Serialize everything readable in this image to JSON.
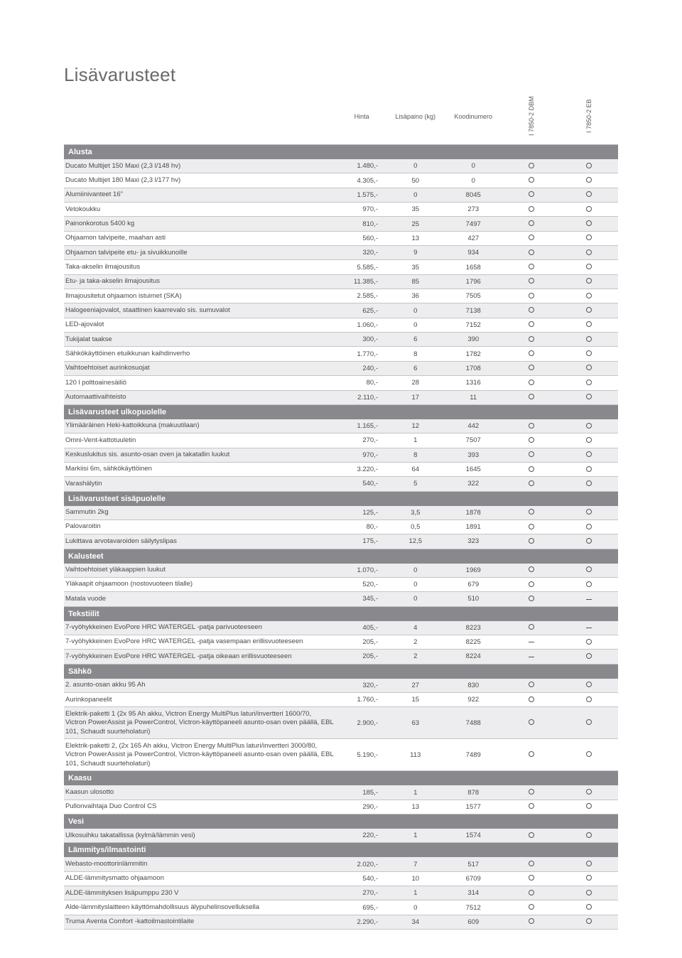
{
  "title": "Lisävarusteet",
  "headers": {
    "blank": "",
    "price": "Hinta",
    "weight": "Lisäpaino (kg)",
    "code": "Koodinumero",
    "optA": "I 7850-2 DBM",
    "optB": "I 7850-2 EB"
  },
  "sections": [
    {
      "title": "Alusta",
      "rows": [
        {
          "label": "Ducato Multijet 150 Maxi (2,3 l/148 hv)",
          "price": "1.480,-",
          "weight": "0",
          "code": "0",
          "a": "o",
          "b": "o",
          "shaded": true
        },
        {
          "label": "Ducato Multijet 180 Maxi (2,3 l/177 hv)",
          "price": "4.305,-",
          "weight": "50",
          "code": "0",
          "a": "o",
          "b": "o"
        },
        {
          "label": "Alumiinivanteet 16\"",
          "price": "1.575,-",
          "weight": "0",
          "code": "8045",
          "a": "o",
          "b": "o",
          "shaded": true
        },
        {
          "label": "Vetokoukku",
          "price": "970,-",
          "weight": "35",
          "code": "273",
          "a": "o",
          "b": "o"
        },
        {
          "label": "Painonkorotus 5400 kg",
          "price": "810,-",
          "weight": "25",
          "code": "7497",
          "a": "o",
          "b": "o",
          "shaded": true
        },
        {
          "label": "Ohjaamon talvipeite, maahan asti",
          "price": "560,-",
          "weight": "13",
          "code": "427",
          "a": "o",
          "b": "o"
        },
        {
          "label": "Ohjaamon talvipeite etu- ja sivuikkunoille",
          "price": "320,-",
          "weight": "9",
          "code": "934",
          "a": "o",
          "b": "o",
          "shaded": true
        },
        {
          "label": "Taka-akselin ilmajousitus",
          "price": "5.585,-",
          "weight": "35",
          "code": "1658",
          "a": "o",
          "b": "o"
        },
        {
          "label": "Etu- ja taka-akselin ilmajousitus",
          "price": "11.385,-",
          "weight": "85",
          "code": "1796",
          "a": "o",
          "b": "o",
          "shaded": true
        },
        {
          "label": "Ilmajousitetut ohjaamon istuimet (SKA)",
          "price": "2.585,-",
          "weight": "36",
          "code": "7505",
          "a": "o",
          "b": "o"
        },
        {
          "label": "Halogeeniajovalot, staattinen kaarrevalo sis. sumuvalot",
          "price": "625,-",
          "weight": "0",
          "code": "7138",
          "a": "o",
          "b": "o",
          "shaded": true
        },
        {
          "label": "LED-ajovalot",
          "price": "1.060,-",
          "weight": "0",
          "code": "7152",
          "a": "o",
          "b": "o"
        },
        {
          "label": "Tukijalat taakse",
          "price": "300,-",
          "weight": "6",
          "code": "390",
          "a": "o",
          "b": "o",
          "shaded": true
        },
        {
          "label": "Sähkökäyttöinen etuikkunan kaihdinverho",
          "price": "1.770,-",
          "weight": "8",
          "code": "1782",
          "a": "o",
          "b": "o"
        },
        {
          "label": "Vaihtoehtoiset aurinkosuojat",
          "price": "240,-",
          "weight": "6",
          "code": "1708",
          "a": "o",
          "b": "o",
          "shaded": true
        },
        {
          "label": "120 l polttoainesäiliö",
          "price": "80,-",
          "weight": "28",
          "code": "1316",
          "a": "o",
          "b": "o"
        },
        {
          "label": "Automaattivaihteisto",
          "price": "2.110,-",
          "weight": "17",
          "code": "11",
          "a": "o",
          "b": "o",
          "shaded": true
        }
      ]
    },
    {
      "title": "Lisävarusteet ulkopuolelle",
      "rows": [
        {
          "label": "Ylimääräinen Heki-kattoikkuna (makuutilaan)",
          "price": "1.165,-",
          "weight": "12",
          "code": "442",
          "a": "o",
          "b": "o",
          "shaded": true
        },
        {
          "label": "Omni-Vent-kattotuuletin",
          "price": "270,-",
          "weight": "1",
          "code": "7507",
          "a": "o",
          "b": "o"
        },
        {
          "label": "Keskuslukitus sis. asunto-osan oven ja takatallin luukut",
          "price": "970,-",
          "weight": "8",
          "code": "393",
          "a": "o",
          "b": "o",
          "shaded": true
        },
        {
          "label": "Markiisi 6m, sähkökäyttöinen",
          "price": "3.220,-",
          "weight": "64",
          "code": "1645",
          "a": "o",
          "b": "o"
        },
        {
          "label": "Varashälytin",
          "price": "540,-",
          "weight": "5",
          "code": "322",
          "a": "o",
          "b": "o",
          "shaded": true
        }
      ]
    },
    {
      "title": "Lisävarusteet sisäpuolelle",
      "rows": [
        {
          "label": "Sammutin 2kg",
          "price": "125,-",
          "weight": "3,5",
          "code": "1878",
          "a": "o",
          "b": "o",
          "shaded": true
        },
        {
          "label": "Palovaroitin",
          "price": "80,-",
          "weight": "0,5",
          "code": "1891",
          "a": "o",
          "b": "o"
        },
        {
          "label": "Lukittava arvotavaroiden säilytyslipas",
          "price": "175,-",
          "weight": "12,5",
          "code": "323",
          "a": "o",
          "b": "o",
          "shaded": true
        }
      ]
    },
    {
      "title": "Kalusteet",
      "rows": [
        {
          "label": "Vaihtoehtoiset yläkaappien luukut",
          "price": "1.070,-",
          "weight": "0",
          "code": "1969",
          "a": "o",
          "b": "o",
          "shaded": true
        },
        {
          "label": "Yläkaapit ohjaamoon (nostovuoteen tilalle)",
          "price": "520,-",
          "weight": "0",
          "code": "679",
          "a": "o",
          "b": "o"
        },
        {
          "label": "Matala vuode",
          "price": "345,-",
          "weight": "0",
          "code": "510",
          "a": "o",
          "b": "-",
          "shaded": true
        }
      ]
    },
    {
      "title": "Tekstiilit",
      "rows": [
        {
          "label": "7-vyöhykkeinen EvoPore HRC WATERGEL -patja parivuoteeseen",
          "price": "405,-",
          "weight": "4",
          "code": "8223",
          "a": "o",
          "b": "-",
          "shaded": true
        },
        {
          "label": "7-vyöhykkeinen EvoPore HRC WATERGEL -patja vasempaan erillisvuoteeseen",
          "price": "205,-",
          "weight": "2",
          "code": "8225",
          "a": "-",
          "b": "o"
        },
        {
          "label": "7-vyöhykkeinen EvoPore HRC WATERGEL -patja oikeaan erillisvuoteeseen",
          "price": "205,-",
          "weight": "2",
          "code": "8224",
          "a": "-",
          "b": "o",
          "shaded": true
        }
      ]
    },
    {
      "title": "Sähkö",
      "rows": [
        {
          "label": "2. asunto-osan akku 95 Ah",
          "price": "320,-",
          "weight": "27",
          "code": "830",
          "a": "o",
          "b": "o",
          "shaded": true
        },
        {
          "label": "Aurinkopaneelit",
          "price": "1.760,-",
          "weight": "15",
          "code": "922",
          "a": "o",
          "b": "o"
        },
        {
          "label": "Elektrik-paketti 1 (2x 95 Ah akku, Victron Energy MultiPlus laturi/invertteri 1600/70, Victron PowerAssist ja PowerControl, Victron-käyttöpaneeli asunto-osan oven päällä, EBL 101, Schaudt suurteholaturi)",
          "price": "2.900,-",
          "weight": "63",
          "code": "7488",
          "a": "o",
          "b": "o",
          "shaded": true
        },
        {
          "label": "Elektrik-paketti 2, (2x 165 Ah akku, Victron Energy MultiPlus laturi/invertteri 3000/80, Victron PowerAssist ja PowerControl, Victron-käyttöpaneeli asunto-osan oven päällä, EBL 101, Schaudt suurteholaturi)",
          "price": "5.190,-",
          "weight": "113",
          "code": "7489",
          "a": "o",
          "b": "o"
        }
      ]
    },
    {
      "title": "Kaasu",
      "rows": [
        {
          "label": "Kaasun ulosotto",
          "price": "185,-",
          "weight": "1",
          "code": "878",
          "a": "o",
          "b": "o",
          "shaded": true
        },
        {
          "label": "Pullonvaihtaja Duo Control CS",
          "price": "290,-",
          "weight": "13",
          "code": "1577",
          "a": "o",
          "b": "o"
        }
      ]
    },
    {
      "title": "Vesi",
      "rows": [
        {
          "label": "Ulkosuihku takatallissa (kylmä/lämmin vesi)",
          "price": "220,-",
          "weight": "1",
          "code": "1574",
          "a": "o",
          "b": "o",
          "shaded": true
        }
      ]
    },
    {
      "title": "Lämmitys/ilmastointi",
      "rows": [
        {
          "label": "Webasto-moottorinlämmitin",
          "price": "2.020,-",
          "weight": "7",
          "code": "517",
          "a": "o",
          "b": "o",
          "shaded": true
        },
        {
          "label": "ALDE-lämmitysmatto ohjaamoon",
          "price": "540,-",
          "weight": "10",
          "code": "6709",
          "a": "o",
          "b": "o"
        },
        {
          "label": "ALDE-lämmityksen lisäpumppu 230 V",
          "price": "270,-",
          "weight": "1",
          "code": "314",
          "a": "o",
          "b": "o",
          "shaded": true
        },
        {
          "label": "Alde-lämmityslaitteen käyttömahdollisuus älypuhelinsovelluksella",
          "price": "695,-",
          "weight": "0",
          "code": "7512",
          "a": "o",
          "b": "o"
        },
        {
          "label": "Truma Aventa Comfort -kattoilmastointilaite",
          "price": "2.290,-",
          "weight": "34",
          "code": "609",
          "a": "o",
          "b": "o",
          "shaded": true
        }
      ]
    }
  ]
}
